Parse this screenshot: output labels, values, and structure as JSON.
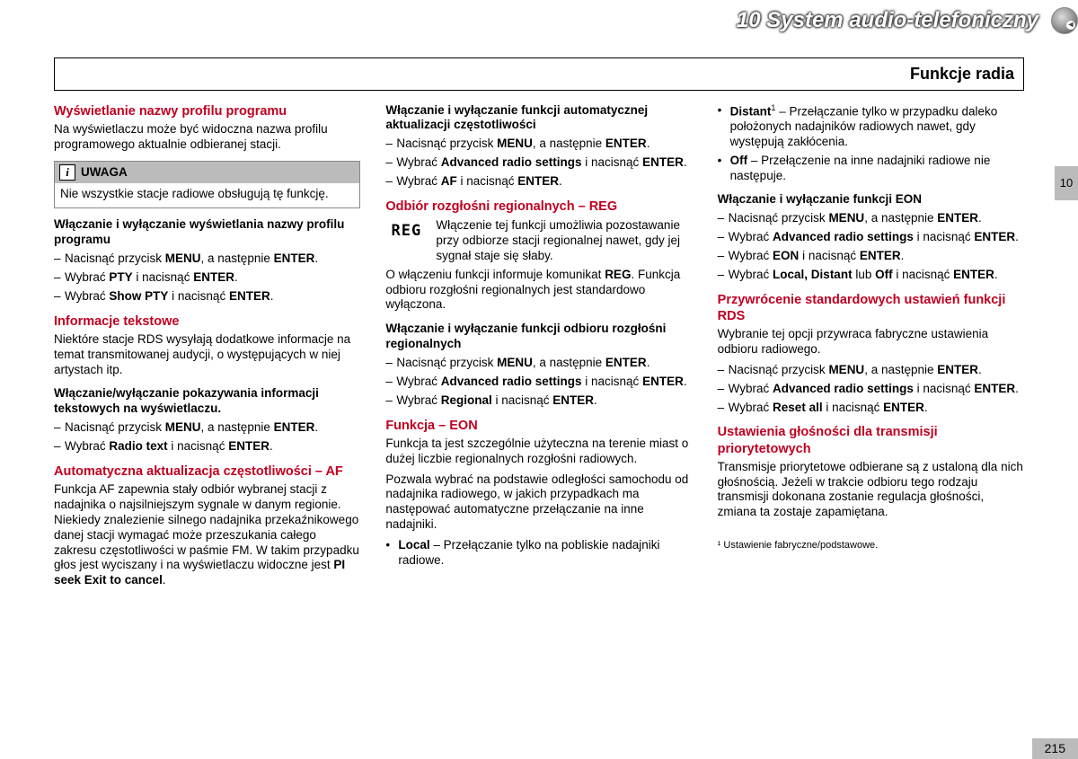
{
  "header": {
    "chapter_num": "10",
    "chapter_title": "System audio-telefoniczny",
    "section_title": "Funkcje radia",
    "side_tab": "10",
    "page_number": "215"
  },
  "col1": {
    "s1_title": "Wyświetlanie nazwy profilu programu",
    "s1_p": "Na wyświetlaczu może być widoczna nazwa profilu programowego aktualnie odbieranej stacji.",
    "note_label": "UWAGA",
    "note_body": "Nie wszystkie stacje radiowe obsługują tę funkcję.",
    "s1_sub": "Włączanie i wyłączanie wyświetlania nazwy profilu programu",
    "s1_step1_a": "Nacisnąć przycisk ",
    "s1_step1_b": "MENU",
    "s1_step1_c": ", a następnie ",
    "s1_step1_d": "ENTER",
    "s1_step1_e": ".",
    "s1_step2_a": "Wybrać ",
    "s1_step2_b": "PTY",
    "s1_step2_c": " i nacisnąć ",
    "s1_step2_d": "ENTER",
    "s1_step2_e": ".",
    "s1_step3_a": "Wybrać ",
    "s1_step3_b": "Show PTY",
    "s1_step3_c": " i nacisnąć ",
    "s1_step3_d": "ENTER",
    "s1_step3_e": ".",
    "s2_title": "Informacje tekstowe",
    "s2_p": "Niektóre stacje RDS wysyłają dodatkowe informacje na temat transmitowanej audycji, o występujących w niej artystach itp.",
    "s2_sub": "Włączanie/wyłączanie pokazywania informacji tekstowych na wyświetlaczu.",
    "s2_step1_a": "Nacisnąć przycisk ",
    "s2_step1_b": "MENU",
    "s2_step1_c": ", a następnie ",
    "s2_step1_d": "ENTER",
    "s2_step1_e": ".",
    "s2_step2_a": "Wybrać ",
    "s2_step2_b": "Radio text",
    "s2_step2_c": " i nacisnąć ",
    "s2_step2_d": "ENTER",
    "s2_step2_e": ".",
    "s3_title": "Automatyczna aktualizacja częstotliwości – AF",
    "s3_p_a": "Funkcja AF zapewnia stały odbiór wybranej stacji z nadajnika o najsilniejszym sygnale w danym regionie. Niekiedy znalezienie silnego nadajnika przekaźnikowego danej stacji wymagać może przeszukania całego zakresu częstotliwości w paśmie FM. W takim przypadku głos jest wyciszany i na wyświetlaczu widoczne jest ",
    "s3_p_b": "PI seek Exit to cancel",
    "s3_p_c": "."
  },
  "col2": {
    "s1_sub": "Włączanie i wyłączanie funkcji automatycznej aktualizacji częstotliwości",
    "s1_step1_a": "Nacisnąć przycisk ",
    "s1_step1_b": "MENU",
    "s1_step1_c": ", a następnie ",
    "s1_step1_d": "ENTER",
    "s1_step1_e": ".",
    "s1_step2_a": "Wybrać ",
    "s1_step2_b": "Advanced radio settings",
    "s1_step2_c": " i nacisnąć ",
    "s1_step2_d": "ENTER",
    "s1_step2_e": ".",
    "s1_step3_a": "Wybrać ",
    "s1_step3_b": "AF",
    "s1_step3_c": " i nacisnąć ",
    "s1_step3_d": "ENTER",
    "s1_step3_e": ".",
    "s2_title": "Odbiór rozgłośni regionalnych – REG",
    "reg_label": "REG",
    "s2_p1": "Włączenie tej funkcji umożliwia pozostawanie przy odbiorze stacji regionalnej nawet, gdy jej sygnał staje się słaby.",
    "s2_p2_a": "O włączeniu funkcji informuje komunikat ",
    "s2_p2_b": "REG",
    "s2_p2_c": ". Funkcja odbioru rozgłośni regionalnych jest standardowo wyłączona.",
    "s2_sub": "Włączanie i wyłączanie funkcji odbioru rozgłośni regionalnych",
    "s2_step1_a": "Nacisnąć przycisk ",
    "s2_step1_b": "MENU",
    "s2_step1_c": ", a następnie ",
    "s2_step1_d": "ENTER",
    "s2_step1_e": ".",
    "s2_step2_a": "Wybrać ",
    "s2_step2_b": "Advanced radio settings",
    "s2_step2_c": " i nacisnąć ",
    "s2_step2_d": "ENTER",
    "s2_step2_e": ".",
    "s2_step3_a": "Wybrać ",
    "s2_step3_b": "Regional",
    "s2_step3_c": " i nacisnąć ",
    "s2_step3_d": "ENTER",
    "s2_step3_e": ".",
    "s3_title": "Funkcja – EON",
    "s3_p1": "Funkcja ta jest szczególnie użyteczna na terenie miast o dużej liczbie regionalnych rozgłośni radiowych.",
    "s3_p2": "Pozwala wybrać na podstawie odległości samochodu od nadajnika radiowego, w jakich przypadkach ma następować automatyczne przełączanie na inne nadajniki.",
    "s3_b1_a": "Local",
    "s3_b1_b": " – Przełączanie tylko na pobliskie nadajniki radiowe."
  },
  "col3": {
    "b1_a": "Distant",
    "b1_sup": "1",
    "b1_b": " – Przełączanie tylko w przypadku daleko położonych nadajników radiowych nawet, gdy występują zakłócenia.",
    "b2_a": "Off",
    "b2_b": " – Przełączenie na inne nadajniki radiowe nie następuje.",
    "s1_sub": "Włączanie i wyłączanie funkcji EON",
    "s1_step1_a": "Nacisnąć przycisk ",
    "s1_step1_b": "MENU",
    "s1_step1_c": ", a następnie ",
    "s1_step1_d": "ENTER",
    "s1_step1_e": ".",
    "s1_step2_a": "Wybrać ",
    "s1_step2_b": "Advanced radio settings",
    "s1_step2_c": " i nacisnąć ",
    "s1_step2_d": "ENTER",
    "s1_step2_e": ".",
    "s1_step3_a": "Wybrać ",
    "s1_step3_b": "EON",
    "s1_step3_c": " i nacisnąć ",
    "s1_step3_d": "ENTER",
    "s1_step3_e": ".",
    "s1_step4_a": "Wybrać ",
    "s1_step4_b": "Local, Distant",
    "s1_step4_c": " lub ",
    "s1_step4_d": "Off",
    "s1_step4_e": " i nacisnąć ",
    "s1_step4_f": "ENTER",
    "s1_step4_g": ".",
    "s2_title": "Przywrócenie standardowych ustawień funkcji RDS",
    "s2_p": "Wybranie tej opcji przywraca fabryczne ustawienia odbioru radiowego.",
    "s2_step1_a": "Nacisnąć przycisk ",
    "s2_step1_b": "MENU",
    "s2_step1_c": ", a następnie ",
    "s2_step1_d": "ENTER",
    "s2_step1_e": ".",
    "s2_step2_a": "Wybrać ",
    "s2_step2_b": "Advanced radio settings",
    "s2_step2_c": " i nacisnąć ",
    "s2_step2_d": "ENTER",
    "s2_step2_e": ".",
    "s2_step3_a": "Wybrać ",
    "s2_step3_b": "Reset all",
    "s2_step3_c": " i nacisnąć ",
    "s2_step3_d": "ENTER",
    "s2_step3_e": ".",
    "s3_title": "Ustawienia głośności dla transmisji priorytetowych",
    "s3_p": "Transmisje priorytetowe odbierane są z ustaloną dla nich głośnością. Jeżeli w trakcie odbioru tego rodzaju transmisji dokonana zostanie regulacja głośności, zmiana ta zostaje zapamiętana.",
    "footnote": "¹ Ustawienie fabryczne/podstawowe."
  }
}
